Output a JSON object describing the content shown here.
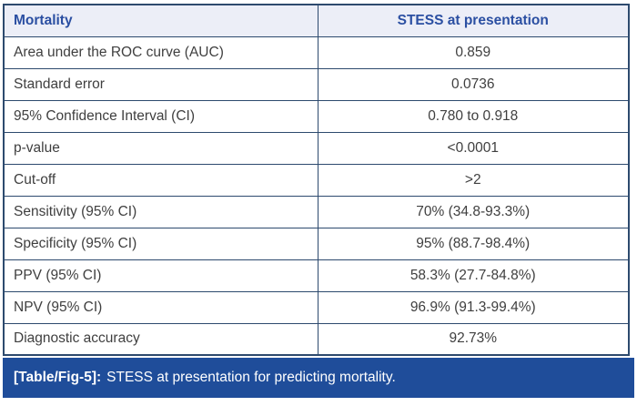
{
  "table": {
    "header": {
      "col1": "Mortality",
      "col2": "STESS at presentation"
    },
    "rows": [
      {
        "label": "Area under the ROC curve (AUC)",
        "value": "0.859"
      },
      {
        "label": "Standard error",
        "value": "0.0736"
      },
      {
        "label": "95% Confidence Interval (CI)",
        "value": "0.780 to 0.918"
      },
      {
        "label": "p-value",
        "value": "<0.0001"
      },
      {
        "label": "Cut-off",
        "value": ">2"
      },
      {
        "label": "Sensitivity (95% CI)",
        "value": "70% (34.8-93.3%)"
      },
      {
        "label": "Specificity (95% CI)",
        "value": "95% (88.7-98.4%)"
      },
      {
        "label": "PPV (95% CI)",
        "value": "58.3% (27.7-84.8%)"
      },
      {
        "label": "NPV (95% CI)",
        "value": "96.9% (91.3-99.4%)"
      },
      {
        "label": "Diagnostic accuracy",
        "value": "92.73%"
      }
    ]
  },
  "caption": {
    "tag": "[Table/Fig-5]:",
    "text": "STESS at presentation for predicting mortality."
  },
  "colors": {
    "border": "#2d4a6e",
    "header_bg": "#eceef7",
    "header_text": "#2b4fa2",
    "body_text": "#3f3f3f",
    "caption_bg": "#1f4d9a",
    "caption_text": "#ffffff"
  }
}
